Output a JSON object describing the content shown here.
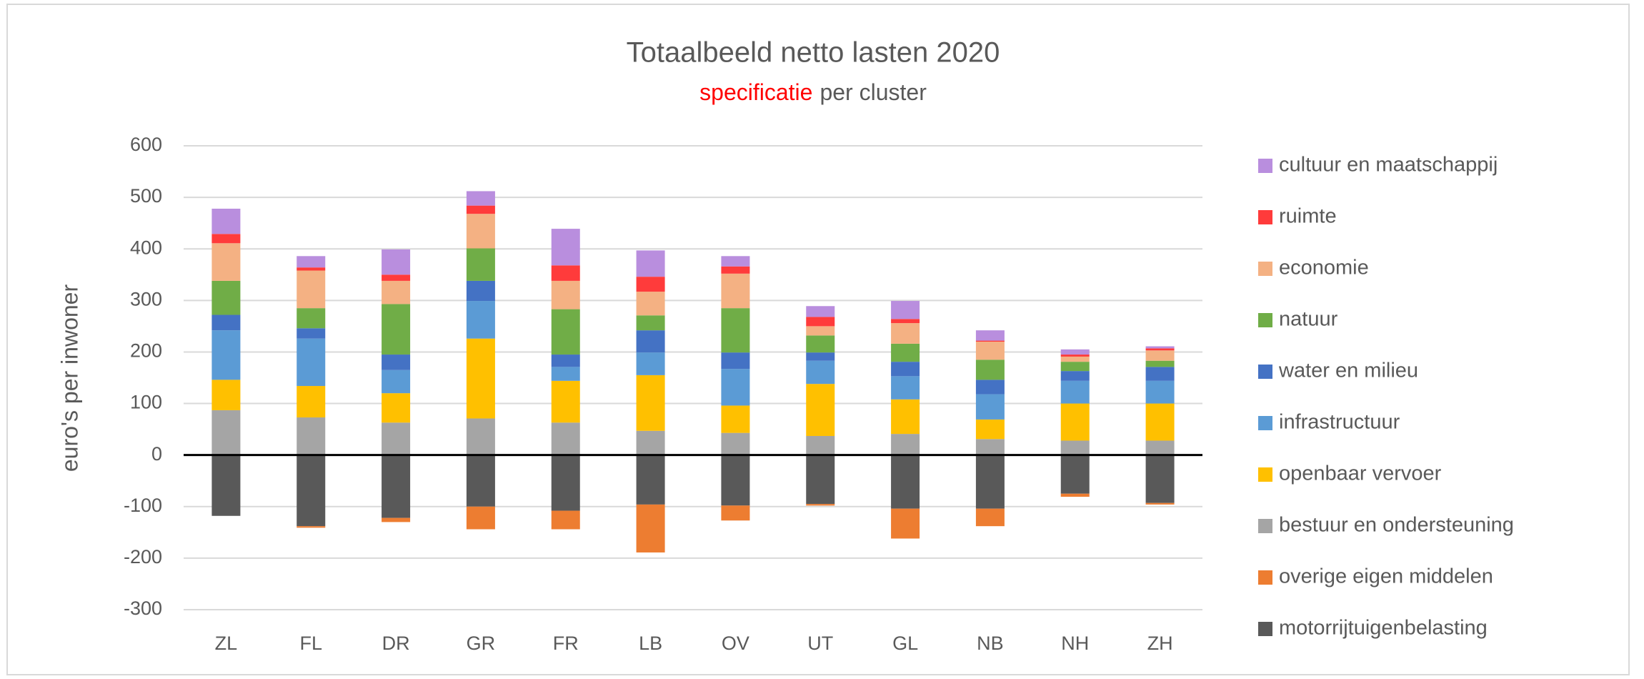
{
  "chart_data": {
    "type": "stacked_bar",
    "title": "Totaalbeeld netto lasten 2020",
    "subtitle": [
      {
        "text": "specificatie",
        "color": "#ff0000"
      },
      {
        "text": "per cluster",
        "color": "#595959"
      }
    ],
    "y_label": "euro's per inwoner",
    "categories": [
      "ZL",
      "FL",
      "DR",
      "GR",
      "FR",
      "LB",
      "OV",
      "UT",
      "GL",
      "NB",
      "NH",
      "ZH"
    ],
    "series": [
      {
        "name": "motorrijtuigenbelasting",
        "color": "#595959",
        "values": [
          -118,
          -138,
          -122,
          -100,
          -108,
          -96,
          -98,
          -95,
          -104,
          -104,
          -75,
          -93
        ]
      },
      {
        "name": "overige eigen middelen",
        "color": "#ed7d31",
        "values": [
          0,
          -3,
          -8,
          -44,
          -36,
          -93,
          -29,
          -3,
          -58,
          -34,
          -6,
          -3
        ]
      },
      {
        "name": "bestuur en ondersteuning",
        "color": "#a5a5a5",
        "values": [
          87,
          73,
          63,
          71,
          63,
          47,
          43,
          37,
          41,
          31,
          28,
          28
        ]
      },
      {
        "name": "openbaar vervoer",
        "color": "#ffc000",
        "values": [
          59,
          61,
          57,
          155,
          81,
          108,
          53,
          101,
          67,
          38,
          72,
          72
        ]
      },
      {
        "name": "infrastructuur",
        "color": "#5b9bd5",
        "values": [
          96,
          92,
          45,
          73,
          27,
          44,
          71,
          45,
          45,
          49,
          44,
          44
        ]
      },
      {
        "name": "water en milieu",
        "color": "#4472c4",
        "values": [
          30,
          20,
          30,
          39,
          24,
          43,
          32,
          16,
          28,
          28,
          19,
          27
        ]
      },
      {
        "name": "natuur",
        "color": "#70ad47",
        "values": [
          66,
          39,
          98,
          63,
          88,
          29,
          86,
          33,
          35,
          39,
          18,
          12
        ]
      },
      {
        "name": "economie",
        "color": "#f4b183",
        "values": [
          73,
          73,
          45,
          67,
          55,
          46,
          67,
          18,
          40,
          35,
          10,
          20
        ]
      },
      {
        "name": "ruimte",
        "color": "#ff3b3b",
        "values": [
          18,
          6,
          12,
          16,
          30,
          29,
          14,
          18,
          8,
          2,
          4,
          4
        ]
      },
      {
        "name": "cultuur en maatschappij",
        "color": "#b98ede",
        "values": [
          49,
          22,
          49,
          28,
          71,
          51,
          20,
          21,
          35,
          20,
          10,
          4
        ]
      }
    ],
    "ylim": [
      -300,
      600
    ],
    "yticks": [
      -300,
      -200,
      -100,
      0,
      100,
      200,
      300,
      400,
      500,
      600
    ],
    "grid": true,
    "legend": "right"
  }
}
